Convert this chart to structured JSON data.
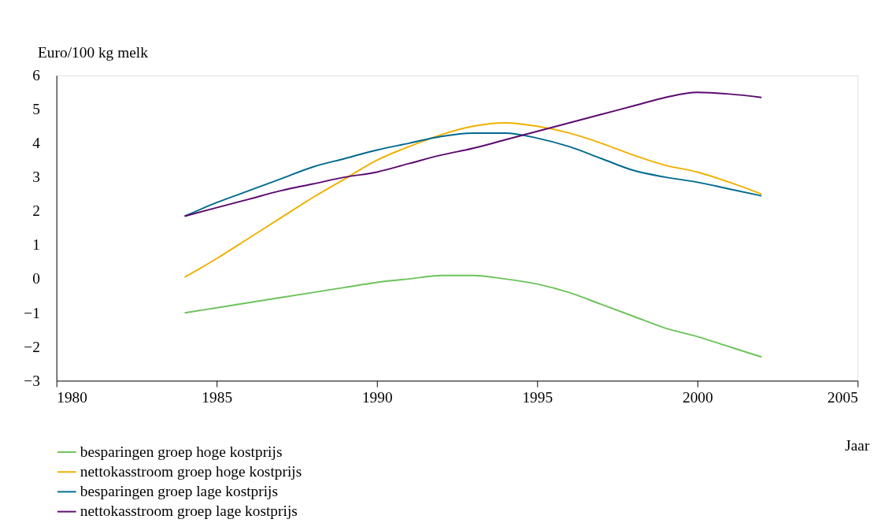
{
  "chart_data": {
    "type": "line",
    "xlabel": "Jaar",
    "ylabel": "Euro/100 kg melk",
    "x": [
      1984,
      1985,
      1986,
      1987,
      1988,
      1989,
      1990,
      1991,
      1992,
      1993,
      1994,
      1995,
      1996,
      1997,
      1998,
      1999,
      2000,
      2001,
      2002
    ],
    "series": [
      {
        "name": "besparingen groep hoge kostprijs",
        "color": "#6cc35a",
        "values": [
          -1.0,
          -0.85,
          -0.7,
          -0.55,
          -0.4,
          -0.25,
          -0.1,
          0.0,
          0.1,
          0.1,
          0.0,
          -0.15,
          -0.4,
          -0.75,
          -1.1,
          -1.45,
          -1.7,
          -2.0,
          -2.3
        ]
      },
      {
        "name": "nettokasstroom groep hoge kostprijs",
        "color": "#f0b000",
        "values": [
          0.05,
          0.6,
          1.2,
          1.8,
          2.4,
          2.95,
          3.5,
          3.9,
          4.25,
          4.5,
          4.6,
          4.5,
          4.3,
          4.0,
          3.65,
          3.35,
          3.15,
          2.85,
          2.5
        ]
      },
      {
        "name": "besparingen groep lage kostprijs",
        "color": "#006a8e",
        "values": [
          1.85,
          2.25,
          2.6,
          2.95,
          3.3,
          3.55,
          3.8,
          4.0,
          4.2,
          4.3,
          4.3,
          4.15,
          3.9,
          3.55,
          3.2,
          3.0,
          2.85,
          2.65,
          2.45
        ]
      },
      {
        "name": "nettokasstroom groep lage kostprijs",
        "color": "#5c0a6e",
        "values": [
          1.85,
          2.1,
          2.35,
          2.6,
          2.8,
          3.0,
          3.15,
          3.4,
          3.65,
          3.85,
          4.1,
          4.35,
          4.6,
          4.85,
          5.1,
          5.35,
          5.5,
          5.45,
          5.35
        ]
      }
    ],
    "xlim": [
      1980,
      2005
    ],
    "xticks": [
      1980,
      1985,
      1990,
      1995,
      2000,
      2005
    ],
    "ylim": [
      -3,
      6
    ],
    "yticks": [
      -3,
      -2,
      -1,
      0,
      1,
      2,
      3,
      4,
      5,
      6
    ],
    "grid": false,
    "legend": "bottom left",
    "marker": "none",
    "line_style": "solid"
  }
}
